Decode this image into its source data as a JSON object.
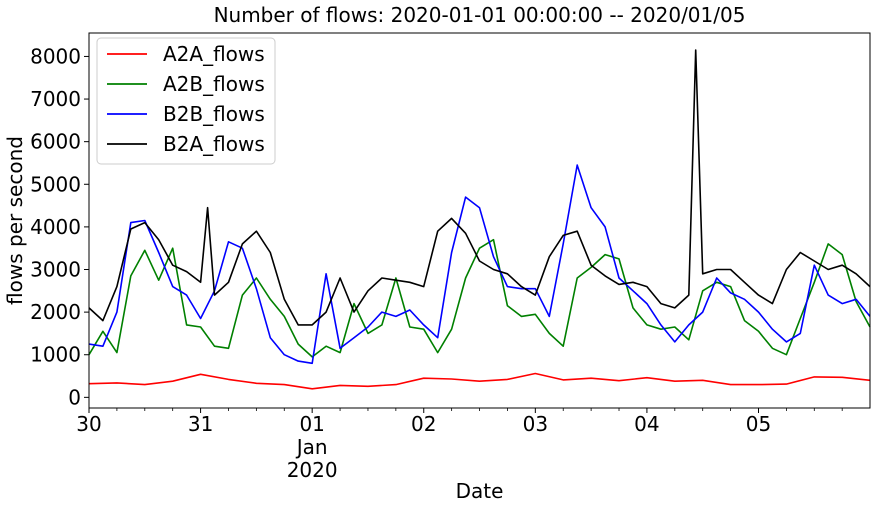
{
  "chart_data": {
    "type": "line",
    "title": "Number of flows: 2020-01-01 00:00:00 -- 2020/01/05",
    "xlabel": "Date",
    "ylabel": "flows per second",
    "xlim": [
      "2019-12-30",
      "2020-01-05T23:59"
    ],
    "ylim": [
      -250,
      8550
    ],
    "yticks": [
      0,
      1000,
      2000,
      3000,
      4000,
      5000,
      6000,
      7000,
      8000
    ],
    "xticks": [
      {
        "x": "2019-12-30",
        "label": "30",
        "sublabel": ""
      },
      {
        "x": "2019-12-31",
        "label": "31",
        "sublabel": ""
      },
      {
        "x": "2020-01-01",
        "label": "01",
        "sublabel": "Jan\n2020"
      },
      {
        "x": "2020-01-02",
        "label": "02",
        "sublabel": ""
      },
      {
        "x": "2020-01-03",
        "label": "03",
        "sublabel": ""
      },
      {
        "x": "2020-01-04",
        "label": "04",
        "sublabel": ""
      },
      {
        "x": "2020-01-05",
        "label": "05",
        "sublabel": ""
      }
    ],
    "grid": false,
    "legend": "upper left",
    "series": [
      {
        "name": "A2A_flows",
        "color": "#ff0000",
        "x": [
          "2019-12-30T00:00",
          "2019-12-30T06:00",
          "2019-12-30T12:00",
          "2019-12-30T18:00",
          "2019-12-31T00:00",
          "2019-12-31T06:00",
          "2019-12-31T12:00",
          "2019-12-31T18:00",
          "2020-01-01T00:00",
          "2020-01-01T06:00",
          "2020-01-01T12:00",
          "2020-01-01T18:00",
          "2020-01-02T00:00",
          "2020-01-02T06:00",
          "2020-01-02T12:00",
          "2020-01-02T18:00",
          "2020-01-03T00:00",
          "2020-01-03T06:00",
          "2020-01-03T12:00",
          "2020-01-03T18:00",
          "2020-01-04T00:00",
          "2020-01-04T06:00",
          "2020-01-04T12:00",
          "2020-01-04T18:00",
          "2020-01-05T00:00",
          "2020-01-05T06:00",
          "2020-01-05T12:00",
          "2020-01-05T18:00",
          "2020-01-05T23:59"
        ],
        "y": [
          320,
          340,
          300,
          380,
          540,
          420,
          330,
          300,
          200,
          280,
          260,
          300,
          450,
          430,
          380,
          420,
          560,
          410,
          450,
          390,
          460,
          380,
          400,
          300,
          300,
          310,
          480,
          470,
          400
        ]
      },
      {
        "name": "A2B_flows",
        "color": "#008000",
        "x": [
          "2019-12-30T00:00",
          "2019-12-30T03:00",
          "2019-12-30T06:00",
          "2019-12-30T09:00",
          "2019-12-30T12:00",
          "2019-12-30T15:00",
          "2019-12-30T18:00",
          "2019-12-30T21:00",
          "2019-12-31T00:00",
          "2019-12-31T03:00",
          "2019-12-31T06:00",
          "2019-12-31T09:00",
          "2019-12-31T12:00",
          "2019-12-31T15:00",
          "2019-12-31T18:00",
          "2019-12-31T21:00",
          "2020-01-01T00:00",
          "2020-01-01T03:00",
          "2020-01-01T06:00",
          "2020-01-01T09:00",
          "2020-01-01T12:00",
          "2020-01-01T15:00",
          "2020-01-01T18:00",
          "2020-01-01T21:00",
          "2020-01-02T00:00",
          "2020-01-02T03:00",
          "2020-01-02T06:00",
          "2020-01-02T09:00",
          "2020-01-02T12:00",
          "2020-01-02T15:00",
          "2020-01-02T18:00",
          "2020-01-02T21:00",
          "2020-01-03T00:00",
          "2020-01-03T03:00",
          "2020-01-03T06:00",
          "2020-01-03T09:00",
          "2020-01-03T12:00",
          "2020-01-03T15:00",
          "2020-01-03T18:00",
          "2020-01-03T21:00",
          "2020-01-04T00:00",
          "2020-01-04T03:00",
          "2020-01-04T06:00",
          "2020-01-04T09:00",
          "2020-01-04T12:00",
          "2020-01-04T15:00",
          "2020-01-04T18:00",
          "2020-01-04T21:00",
          "2020-01-05T00:00",
          "2020-01-05T03:00",
          "2020-01-05T06:00",
          "2020-01-05T09:00",
          "2020-01-05T12:00",
          "2020-01-05T15:00",
          "2020-01-05T18:00",
          "2020-01-05T21:00",
          "2020-01-05T23:59"
        ],
        "y": [
          1000,
          1550,
          1050,
          2850,
          3450,
          2750,
          3500,
          1700,
          1650,
          1200,
          1150,
          2400,
          2800,
          2300,
          1900,
          1250,
          950,
          1200,
          1050,
          2200,
          1500,
          1700,
          2800,
          1650,
          1600,
          1050,
          1600,
          2800,
          3500,
          3700,
          2150,
          1900,
          1950,
          1500,
          1200,
          2800,
          3050,
          3350,
          3250,
          2100,
          1700,
          1600,
          1650,
          1350,
          2500,
          2700,
          2600,
          1800,
          1550,
          1150,
          1000,
          1850,
          2700,
          3600,
          3350,
          2250,
          1650
        ]
      },
      {
        "name": "B2B_flows",
        "color": "#0000ff",
        "x": [
          "2019-12-30T00:00",
          "2019-12-30T03:00",
          "2019-12-30T06:00",
          "2019-12-30T09:00",
          "2019-12-30T12:00",
          "2019-12-30T15:00",
          "2019-12-30T18:00",
          "2019-12-30T21:00",
          "2019-12-31T00:00",
          "2019-12-31T03:00",
          "2019-12-31T06:00",
          "2019-12-31T09:00",
          "2019-12-31T12:00",
          "2019-12-31T15:00",
          "2019-12-31T18:00",
          "2019-12-31T21:00",
          "2020-01-01T00:00",
          "2020-01-01T03:00",
          "2020-01-01T06:00",
          "2020-01-01T09:00",
          "2020-01-01T12:00",
          "2020-01-01T15:00",
          "2020-01-01T18:00",
          "2020-01-01T21:00",
          "2020-01-02T00:00",
          "2020-01-02T03:00",
          "2020-01-02T06:00",
          "2020-01-02T09:00",
          "2020-01-02T12:00",
          "2020-01-02T15:00",
          "2020-01-02T18:00",
          "2020-01-02T21:00",
          "2020-01-03T00:00",
          "2020-01-03T03:00",
          "2020-01-03T06:00",
          "2020-01-03T09:00",
          "2020-01-03T12:00",
          "2020-01-03T15:00",
          "2020-01-03T18:00",
          "2020-01-03T21:00",
          "2020-01-04T00:00",
          "2020-01-04T03:00",
          "2020-01-04T06:00",
          "2020-01-04T09:00",
          "2020-01-04T12:00",
          "2020-01-04T15:00",
          "2020-01-04T18:00",
          "2020-01-04T21:00",
          "2020-01-05T00:00",
          "2020-01-05T03:00",
          "2020-01-05T06:00",
          "2020-01-05T09:00",
          "2020-01-05T12:00",
          "2020-01-05T15:00",
          "2020-01-05T18:00",
          "2020-01-05T21:00",
          "2020-01-05T23:59"
        ],
        "y": [
          1250,
          1200,
          2000,
          4100,
          4150,
          3400,
          2600,
          2400,
          1850,
          2500,
          3650,
          3500,
          2550,
          1400,
          1000,
          850,
          800,
          2900,
          1150,
          1400,
          1650,
          2000,
          1900,
          2050,
          1700,
          1400,
          3400,
          4700,
          4450,
          3300,
          2600,
          2550,
          2550,
          1900,
          3600,
          5450,
          4450,
          4000,
          2800,
          2500,
          2200,
          1700,
          1300,
          1700,
          2000,
          2800,
          2450,
          2300,
          2000,
          1600,
          1300,
          1500,
          3100,
          2400,
          2200,
          2300,
          1900
        ]
      },
      {
        "name": "B2A_flows",
        "color": "#000000",
        "x": [
          "2019-12-30T00:00",
          "2019-12-30T03:00",
          "2019-12-30T06:00",
          "2019-12-30T09:00",
          "2019-12-30T12:00",
          "2019-12-30T15:00",
          "2019-12-30T18:00",
          "2019-12-30T21:00",
          "2019-12-31T00:00",
          "2019-12-31T01:30",
          "2019-12-31T03:00",
          "2019-12-31T06:00",
          "2019-12-31T09:00",
          "2019-12-31T12:00",
          "2019-12-31T15:00",
          "2019-12-31T18:00",
          "2019-12-31T21:00",
          "2020-01-01T00:00",
          "2020-01-01T03:00",
          "2020-01-01T06:00",
          "2020-01-01T09:00",
          "2020-01-01T12:00",
          "2020-01-01T15:00",
          "2020-01-01T18:00",
          "2020-01-01T21:00",
          "2020-01-02T00:00",
          "2020-01-02T03:00",
          "2020-01-02T06:00",
          "2020-01-02T09:00",
          "2020-01-02T12:00",
          "2020-01-02T15:00",
          "2020-01-02T18:00",
          "2020-01-02T21:00",
          "2020-01-03T00:00",
          "2020-01-03T03:00",
          "2020-01-03T06:00",
          "2020-01-03T09:00",
          "2020-01-03T12:00",
          "2020-01-03T15:00",
          "2020-01-03T18:00",
          "2020-01-03T21:00",
          "2020-01-04T00:00",
          "2020-01-04T03:00",
          "2020-01-04T06:00",
          "2020-01-04T09:00",
          "2020-01-04T10:30",
          "2020-01-04T12:00",
          "2020-01-04T15:00",
          "2020-01-04T18:00",
          "2020-01-04T21:00",
          "2020-01-05T00:00",
          "2020-01-05T03:00",
          "2020-01-05T06:00",
          "2020-01-05T09:00",
          "2020-01-05T12:00",
          "2020-01-05T15:00",
          "2020-01-05T18:00",
          "2020-01-05T21:00",
          "2020-01-05T23:59"
        ],
        "y": [
          2100,
          1800,
          2600,
          3950,
          4100,
          3700,
          3100,
          2950,
          2700,
          4450,
          2400,
          2700,
          3600,
          3900,
          3400,
          2300,
          1700,
          1700,
          2000,
          2800,
          2000,
          2500,
          2800,
          2750,
          2700,
          2600,
          3900,
          4200,
          3850,
          3200,
          3000,
          2900,
          2600,
          2400,
          3300,
          3800,
          3900,
          3100,
          2850,
          2650,
          2700,
          2600,
          2200,
          2100,
          2400,
          8150,
          2900,
          3000,
          3000,
          2700,
          2400,
          2200,
          3000,
          3400,
          3200,
          3000,
          3100,
          2900,
          2600
        ]
      }
    ]
  }
}
